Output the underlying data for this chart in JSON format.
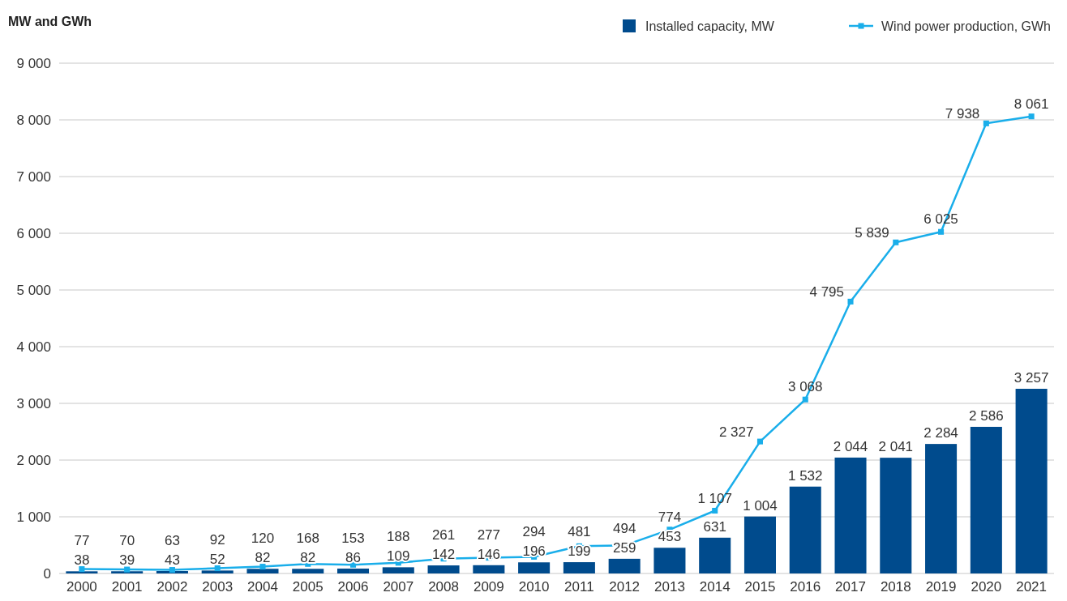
{
  "chart_data": {
    "type": "bar",
    "ylabel": "MW and GWh",
    "categories": [
      "2000",
      "2001",
      "2002",
      "2003",
      "2004",
      "2005",
      "2006",
      "2007",
      "2008",
      "2009",
      "2010",
      "2011",
      "2012",
      "2013",
      "2014",
      "2015",
      "2016",
      "2017",
      "2018",
      "2019",
      "2020",
      "2021"
    ],
    "series": [
      {
        "name": "Installed capacity, MW",
        "color": "#004b8d",
        "values": [
          38,
          39,
          43,
          52,
          82,
          82,
          86,
          109,
          142,
          146,
          196,
          199,
          259,
          453,
          631,
          1004,
          1532,
          2044,
          2041,
          2284,
          2586,
          3257
        ],
        "value_labels": [
          "38",
          "39",
          "43",
          "52",
          "82",
          "82",
          "86",
          "109",
          "142",
          "146",
          "196",
          "199",
          "259",
          "453",
          "631",
          "1 004",
          "1 532",
          "2 044",
          "2 041",
          "2 284",
          "2 586",
          "3 257"
        ]
      },
      {
        "name": "Wind power production, GWh",
        "type": "line",
        "color": "#1aaeea",
        "marker": "square",
        "values": [
          77,
          70,
          63,
          92,
          120,
          168,
          153,
          188,
          261,
          277,
          294,
          481,
          494,
          774,
          1107,
          2327,
          3068,
          4795,
          5839,
          6025,
          7938,
          8061
        ],
        "value_labels": [
          "77",
          "70",
          "63",
          "92",
          "120",
          "168",
          "153",
          "188",
          "261",
          "277",
          "294",
          "481",
          "494",
          "774",
          "1 107",
          "2 327",
          "3 068",
          "4 795",
          "5 839",
          "6 025",
          "7 938",
          "8 061"
        ]
      }
    ],
    "ylim": [
      0,
      9000
    ],
    "yticks": [
      0,
      {
        "value": 1000,
        "label": "1 000"
      },
      {
        "value": 2000,
        "label": "2 000"
      },
      {
        "value": 3000,
        "label": "3 000"
      },
      {
        "value": 4000,
        "label": "4 000"
      },
      {
        "value": 5000,
        "label": "5 000"
      },
      {
        "value": 6000,
        "label": "6 000"
      },
      {
        "value": 7000,
        "label": "7 000"
      },
      {
        "value": 8000,
        "label": "8 000"
      },
      {
        "value": 9000,
        "label": "9 000"
      }
    ],
    "grid": "y",
    "legend": "top right"
  }
}
